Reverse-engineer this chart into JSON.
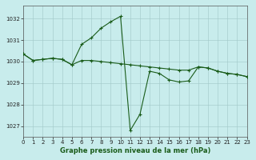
{
  "title": "Graphe pression niveau de la mer (hPa)",
  "background_color": "#c8ecec",
  "grid_color": "#a0c8c8",
  "line_color": "#1a5c1a",
  "xlim": [
    0,
    23
  ],
  "ylim": [
    1026.5,
    1032.6
  ],
  "yticks": [
    1027,
    1028,
    1029,
    1030,
    1031,
    1032
  ],
  "xticks": [
    0,
    1,
    2,
    3,
    4,
    5,
    6,
    7,
    8,
    9,
    10,
    11,
    12,
    13,
    14,
    15,
    16,
    17,
    18,
    19,
    20,
    21,
    22,
    23
  ],
  "series1_x": [
    0,
    1,
    2,
    3,
    4,
    5,
    6,
    7,
    8,
    9,
    10,
    11,
    12,
    13,
    14,
    15,
    16,
    17,
    18,
    19,
    20,
    21,
    22,
    23
  ],
  "series1_y": [
    1030.35,
    1030.05,
    1030.1,
    1030.15,
    1030.1,
    1029.85,
    1030.05,
    1030.05,
    1030.0,
    1029.95,
    1029.9,
    1029.85,
    1029.8,
    1029.75,
    1029.7,
    1029.65,
    1029.6,
    1029.6,
    1029.75,
    1029.7,
    1029.55,
    1029.45,
    1029.4,
    1029.3
  ],
  "series2_x": [
    0,
    1,
    2,
    3,
    4,
    5,
    6,
    7,
    8,
    9,
    10,
    11,
    12,
    13,
    14,
    15,
    16,
    17,
    18,
    19,
    20,
    21,
    22,
    23
  ],
  "series2_y": [
    1030.35,
    1030.05,
    1030.1,
    1030.15,
    1030.1,
    1029.85,
    1030.8,
    1031.1,
    1031.55,
    1031.85,
    1032.1,
    1026.8,
    1027.55,
    1029.55,
    1029.45,
    1029.15,
    1029.05,
    1029.1,
    1029.75,
    1029.7,
    1029.55,
    1029.45,
    1029.4,
    1029.3
  ],
  "tick_labelsize": 5,
  "xlabel_fontsize": 6,
  "lw": 0.8,
  "markersize": 2.5,
  "markeredgewidth": 0.8
}
